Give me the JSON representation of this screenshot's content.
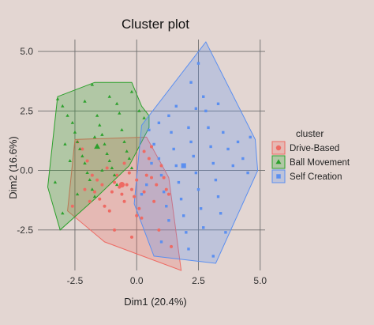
{
  "chart_data": {
    "type": "scatter",
    "title": "Cluster plot",
    "xlabel": "Dim1 (20.4%)",
    "ylabel": "Dim2 (16.6%)",
    "xlim": [
      -4.0,
      5.2
    ],
    "ylim": [
      -4.2,
      5.5
    ],
    "xticks": [
      -2.5,
      0.0,
      2.5,
      5.0
    ],
    "xtick_labels": [
      "-2.5",
      "0.0",
      "2.5",
      "5.0"
    ],
    "yticks": [
      -2.5,
      0.0,
      2.5,
      5.0
    ],
    "ytick_labels": [
      "-2.5",
      "0.0",
      "2.5",
      "5.0"
    ],
    "grid": true,
    "legend": {
      "title": "cluster",
      "position": "right"
    },
    "series": [
      {
        "name": "Drive-Based",
        "color": "#ee6a63",
        "marker": "circle",
        "hull": [
          [
            -2.8,
            -1.7
          ],
          [
            -2.5,
            1.3
          ],
          [
            0.4,
            1.4
          ],
          [
            1.3,
            -0.3
          ],
          [
            1.8,
            -4.2
          ],
          [
            -1.3,
            -3.0
          ]
        ],
        "centroid": [
          -0.6,
          -0.6
        ],
        "points": [
          [
            -2.4,
            1.2
          ],
          [
            -2.2,
            0.9
          ],
          [
            -2.0,
            0.4
          ],
          [
            -1.8,
            -0.2
          ],
          [
            -1.6,
            -0.4
          ],
          [
            -1.4,
            -0.6
          ],
          [
            -1.7,
            -0.9
          ],
          [
            -1.5,
            -1.2
          ],
          [
            -1.3,
            -1.5
          ],
          [
            -1.1,
            -1.7
          ],
          [
            -1.0,
            -0.9
          ],
          [
            -0.9,
            -0.5
          ],
          [
            -0.8,
            -0.2
          ],
          [
            -0.7,
            -0.7
          ],
          [
            -0.6,
            -1.0
          ],
          [
            -0.5,
            -1.3
          ],
          [
            -0.4,
            -0.6
          ],
          [
            -0.3,
            -0.1
          ],
          [
            -0.2,
            -0.8
          ],
          [
            -0.1,
            -1.1
          ],
          [
            0.0,
            -0.4
          ],
          [
            0.1,
            -1.6
          ],
          [
            0.2,
            -2.0
          ],
          [
            0.3,
            -0.9
          ],
          [
            0.4,
            -0.2
          ],
          [
            0.5,
            0.5
          ],
          [
            0.6,
            1.0
          ],
          [
            0.7,
            -1.3
          ],
          [
            0.8,
            -0.6
          ],
          [
            0.9,
            -2.5
          ],
          [
            1.0,
            0.2
          ],
          [
            1.1,
            -0.3
          ],
          [
            1.3,
            -1.0
          ],
          [
            1.4,
            -3.2
          ],
          [
            1.2,
            -0.8
          ],
          [
            -0.2,
            -2.8
          ],
          [
            -0.9,
            -2.5
          ],
          [
            -1.9,
            -1.3
          ],
          [
            -2.1,
            -0.8
          ],
          [
            -1.2,
            0.1
          ],
          [
            -0.5,
            0.3
          ],
          [
            0.3,
            0.8
          ],
          [
            -2.6,
            -1.5
          ],
          [
            0.0,
            -1.9
          ],
          [
            0.6,
            -0.3
          ]
        ]
      },
      {
        "name": "Ball Movement",
        "color": "#2ca02c",
        "marker": "triangle",
        "hull": [
          [
            -3.6,
            -0.7
          ],
          [
            -3.2,
            3.1
          ],
          [
            -1.7,
            3.7
          ],
          [
            -0.2,
            3.7
          ],
          [
            0.2,
            2.7
          ],
          [
            0.5,
            2.3
          ],
          [
            0.5,
            1.8
          ],
          [
            -0.3,
            0.2
          ],
          [
            -1.7,
            -1.2
          ],
          [
            -3.1,
            -2.5
          ]
        ],
        "centroid": [
          -1.6,
          1.0
        ],
        "points": [
          [
            -3.2,
            3.0
          ],
          [
            -3.0,
            2.7
          ],
          [
            -2.8,
            2.3
          ],
          [
            -2.6,
            2.0
          ],
          [
            -2.5,
            1.6
          ],
          [
            -2.4,
            1.2
          ],
          [
            -2.3,
            0.9
          ],
          [
            -2.2,
            0.6
          ],
          [
            -2.1,
            0.3
          ],
          [
            -2.0,
            -0.1
          ],
          [
            -1.9,
            -0.4
          ],
          [
            -1.8,
            -0.8
          ],
          [
            -1.7,
            -1.1
          ],
          [
            -1.6,
            2.3
          ],
          [
            -1.5,
            1.9
          ],
          [
            -1.4,
            1.5
          ],
          [
            -1.3,
            1.1
          ],
          [
            -1.2,
            0.7
          ],
          [
            -1.1,
            0.4
          ],
          [
            -1.0,
            0.1
          ],
          [
            -0.9,
            -0.2
          ],
          [
            -0.8,
            2.8
          ],
          [
            -0.7,
            2.4
          ],
          [
            -0.6,
            1.7
          ],
          [
            -0.5,
            1.2
          ],
          [
            -0.4,
            0.8
          ],
          [
            -0.3,
            0.5
          ],
          [
            -0.2,
            3.3
          ],
          [
            0.1,
            2.5
          ],
          [
            0.3,
            2.2
          ],
          [
            -1.8,
            3.6
          ],
          [
            -1.1,
            3.1
          ],
          [
            -2.9,
            1.1
          ],
          [
            -3.3,
            -0.5
          ],
          [
            -3.0,
            -1.8
          ],
          [
            -2.4,
            -1.0
          ],
          [
            -2.7,
            0.4
          ],
          [
            -1.4,
            0.0
          ],
          [
            -0.8,
            -0.6
          ],
          [
            -0.2,
            0.1
          ],
          [
            -2.1,
            2.9
          ],
          [
            -1.7,
            1.4
          ]
        ]
      },
      {
        "name": "Self Creation",
        "color": "#5b8ff0",
        "marker": "square",
        "hull": [
          [
            0.2,
            1.9
          ],
          [
            -0.1,
            -1.4
          ],
          [
            0.7,
            -3.6
          ],
          [
            3.2,
            -3.9
          ],
          [
            4.9,
            0.0
          ],
          [
            4.8,
            1.3
          ],
          [
            2.8,
            5.4
          ]
        ],
        "centroid": [
          1.9,
          0.2
        ],
        "points": [
          [
            0.5,
            1.7
          ],
          [
            0.7,
            1.1
          ],
          [
            0.9,
            0.5
          ],
          [
            1.0,
            -0.2
          ],
          [
            1.1,
            -0.9
          ],
          [
            1.2,
            -1.5
          ],
          [
            1.3,
            2.3
          ],
          [
            1.4,
            1.6
          ],
          [
            1.5,
            0.9
          ],
          [
            1.6,
            0.2
          ],
          [
            1.7,
            -0.5
          ],
          [
            1.8,
            -1.2
          ],
          [
            1.9,
            -1.9
          ],
          [
            2.0,
            -2.6
          ],
          [
            2.1,
            1.8
          ],
          [
            2.2,
            1.2
          ],
          [
            2.3,
            0.6
          ],
          [
            2.4,
            -0.1
          ],
          [
            2.5,
            -0.8
          ],
          [
            2.6,
            -1.6
          ],
          [
            2.7,
            -2.4
          ],
          [
            2.8,
            2.5
          ],
          [
            2.9,
            1.8
          ],
          [
            3.0,
            1.0
          ],
          [
            3.1,
            0.3
          ],
          [
            3.2,
            -0.4
          ],
          [
            3.3,
            -1.1
          ],
          [
            3.4,
            -1.8
          ],
          [
            3.5,
            1.6
          ],
          [
            3.7,
            0.9
          ],
          [
            3.9,
            0.2
          ],
          [
            4.1,
            1.2
          ],
          [
            4.3,
            0.5
          ],
          [
            4.5,
            -0.1
          ],
          [
            4.6,
            1.4
          ],
          [
            2.7,
            3.1
          ],
          [
            2.4,
            2.6
          ],
          [
            1.6,
            2.7
          ],
          [
            0.9,
            2.0
          ],
          [
            0.4,
            -0.6
          ],
          [
            0.2,
            -1.0
          ],
          [
            1.0,
            -3.0
          ],
          [
            2.1,
            -3.3
          ],
          [
            3.1,
            -3.6
          ],
          [
            3.6,
            -2.6
          ],
          [
            2.5,
            4.5
          ],
          [
            2.2,
            3.7
          ],
          [
            3.3,
            2.8
          ],
          [
            0.6,
            0.3
          ],
          [
            1.3,
            -2.1
          ]
        ]
      }
    ]
  }
}
